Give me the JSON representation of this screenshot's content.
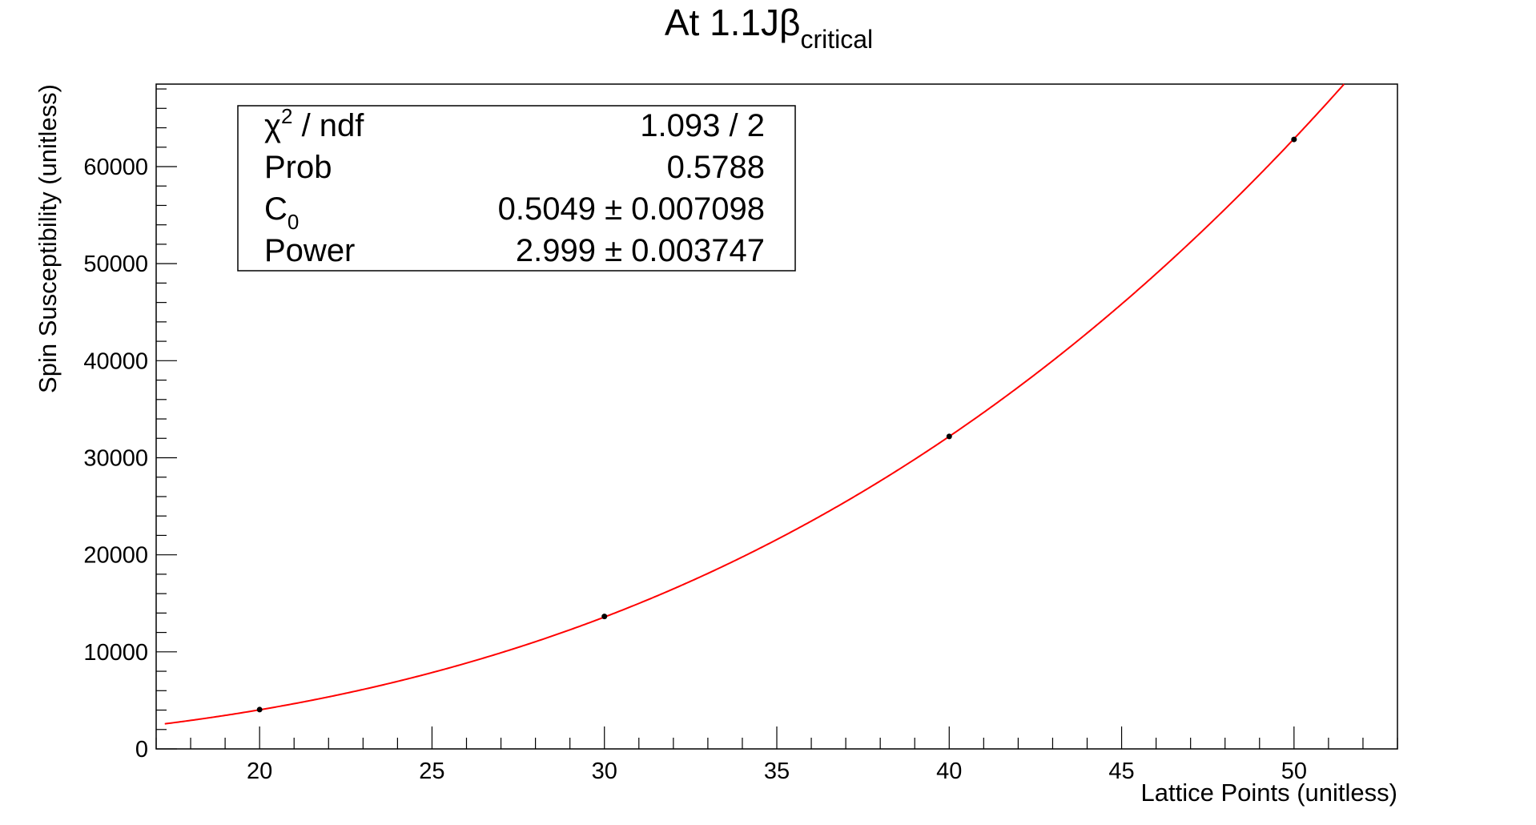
{
  "chart_data": {
    "type": "scatter",
    "title": "At 1.1Jβ",
    "title_subscript": "critical",
    "xlabel": "Lattice Points (unitless)",
    "ylabel": "Spin Susceptibility (unitless)",
    "xlim": [
      17,
      53
    ],
    "ylim": [
      0,
      68500
    ],
    "x_ticks": [
      20,
      25,
      30,
      35,
      40,
      45,
      50
    ],
    "y_ticks": [
      0,
      10000,
      20000,
      30000,
      40000,
      50000,
      60000
    ],
    "grid": false,
    "points": {
      "x": [
        20,
        30,
        40,
        50
      ],
      "y": [
        4050,
        13650,
        32200,
        62800
      ],
      "color": "#000000"
    },
    "fit": {
      "function": "C0 * x^Power",
      "C0": 0.5049,
      "Power": 2.999,
      "color": "#ff0000"
    },
    "stats_box": {
      "placement": "top-left",
      "rows": [
        {
          "label": "χ",
          "label_sup": "2",
          "label_tail": " / ndf",
          "value": "1.093 / 2"
        },
        {
          "label": "Prob",
          "label_sup": "",
          "label_tail": "",
          "value": "0.5788"
        },
        {
          "label": "C",
          "label_sub": "0",
          "label_tail": "",
          "value": "0.5049 ± 0.007098"
        },
        {
          "label": "Power",
          "label_sup": "",
          "label_tail": "",
          "value": "2.999 ± 0.003747"
        }
      ]
    }
  }
}
